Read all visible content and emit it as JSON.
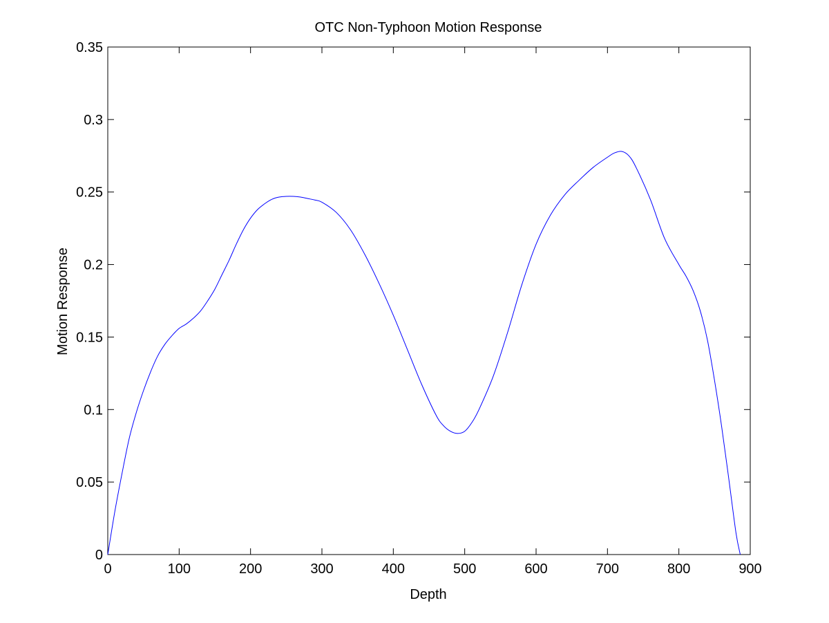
{
  "chart_data": {
    "type": "line",
    "title": "OTC Non-Typhoon Motion Response",
    "xlabel": "Depth",
    "ylabel": "Motion Response",
    "xlim": [
      0,
      900
    ],
    "ylim": [
      0,
      0.35
    ],
    "xticks": [
      0,
      100,
      200,
      300,
      400,
      500,
      600,
      700,
      800,
      900
    ],
    "xtick_labels": [
      "0",
      "100",
      "200",
      "300",
      "400",
      "500",
      "600",
      "700",
      "800",
      "900"
    ],
    "yticks": [
      0,
      0.05,
      0.1,
      0.15,
      0.2,
      0.25,
      0.3,
      0.35
    ],
    "ytick_labels": [
      "0",
      "0.05",
      "0.1",
      "0.15",
      "0.2",
      "0.25",
      "0.3",
      "0.35"
    ],
    "grid": false,
    "line_color": "#0000ff",
    "series": [
      {
        "x": [
          0,
          10,
          20,
          30,
          40,
          50,
          60,
          70,
          80,
          90,
          100,
          110,
          120,
          130,
          140,
          150,
          160,
          170,
          180,
          190,
          200,
          210,
          220,
          230,
          240,
          250,
          260,
          270,
          280,
          290,
          300,
          320,
          340,
          360,
          380,
          400,
          420,
          440,
          460,
          470,
          480,
          490,
          500,
          510,
          520,
          540,
          560,
          580,
          600,
          620,
          640,
          660,
          680,
          700,
          710,
          720,
          730,
          740,
          760,
          780,
          800,
          810,
          820,
          830,
          840,
          850,
          860,
          870,
          880,
          886
        ],
        "y": [
          0,
          0.03,
          0.056,
          0.08,
          0.098,
          0.113,
          0.126,
          0.137,
          0.145,
          0.151,
          0.156,
          0.159,
          0.163,
          0.168,
          0.175,
          0.183,
          0.193,
          0.203,
          0.214,
          0.224,
          0.232,
          0.238,
          0.242,
          0.245,
          0.2465,
          0.247,
          0.247,
          0.2465,
          0.2455,
          0.2445,
          0.243,
          0.236,
          0.224,
          0.207,
          0.187,
          0.165,
          0.141,
          0.117,
          0.096,
          0.089,
          0.085,
          0.0835,
          0.085,
          0.091,
          0.1,
          0.123,
          0.153,
          0.186,
          0.214,
          0.234,
          0.248,
          0.258,
          0.267,
          0.274,
          0.277,
          0.278,
          0.275,
          0.267,
          0.245,
          0.218,
          0.2,
          0.192,
          0.182,
          0.168,
          0.148,
          0.12,
          0.088,
          0.052,
          0.015,
          0
        ]
      }
    ]
  }
}
